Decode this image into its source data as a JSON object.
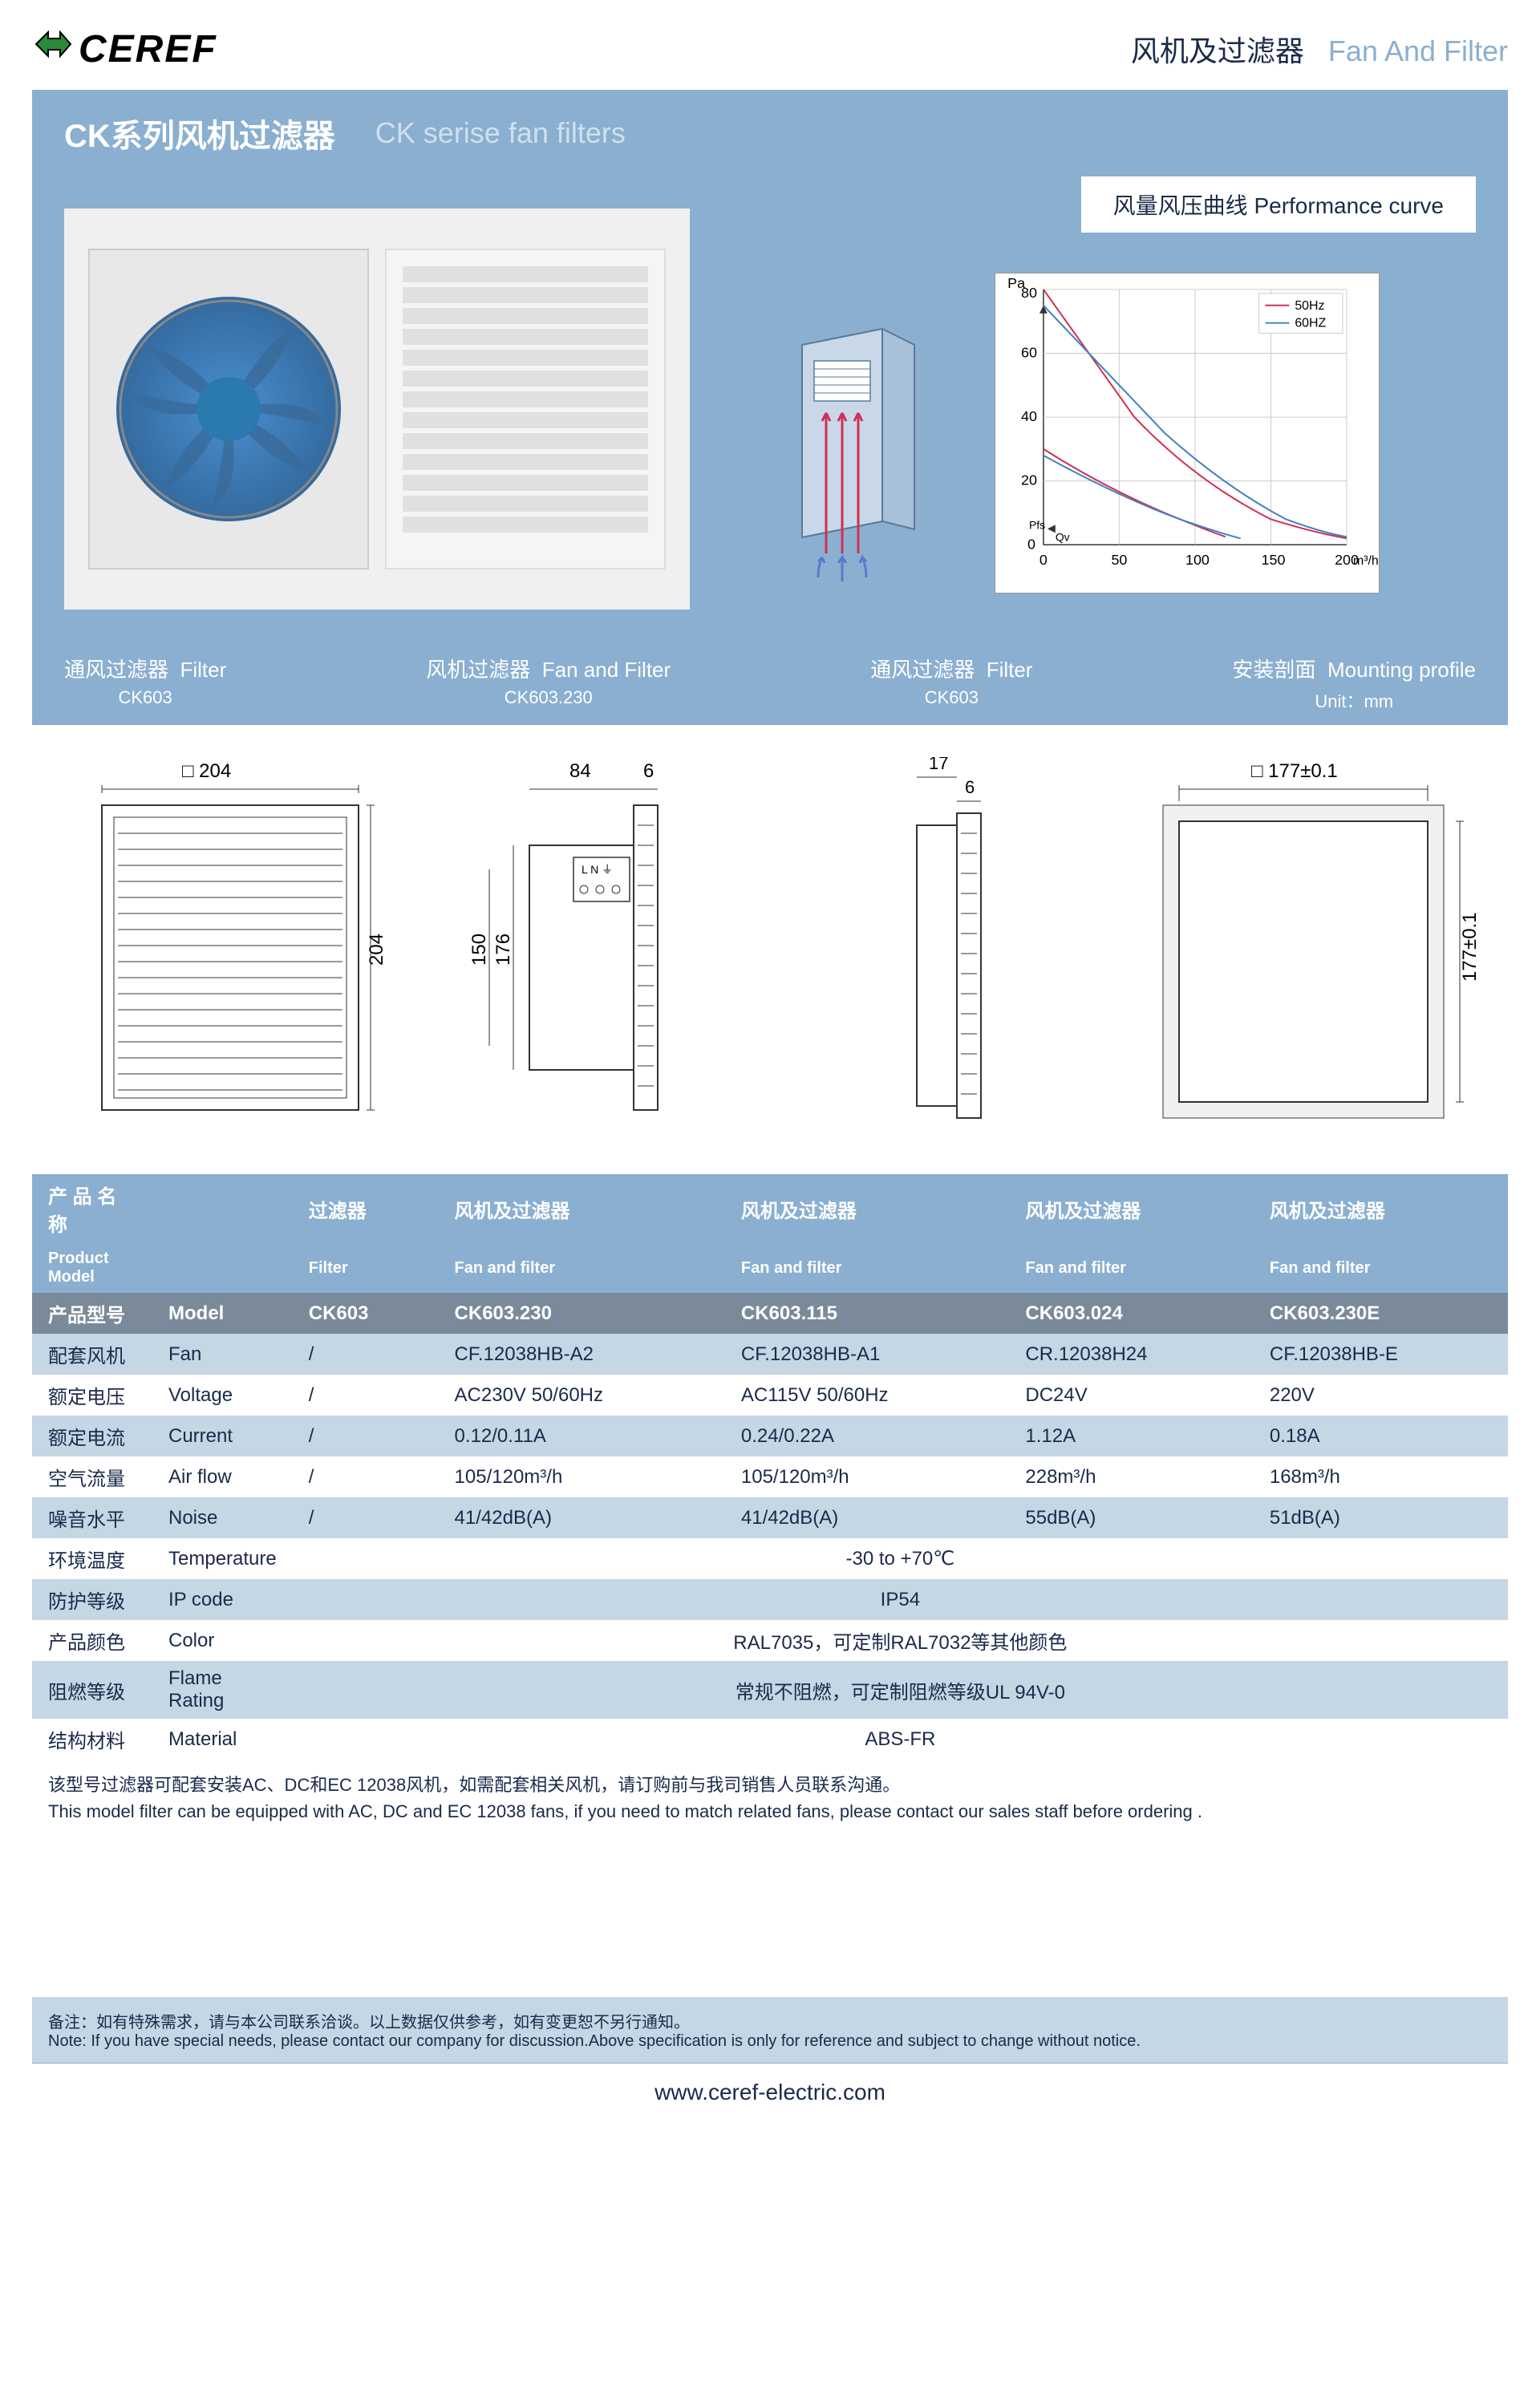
{
  "header": {
    "logo_text": "CEREF",
    "category_cn": "风机及过滤器",
    "category_en": "Fan And Filter"
  },
  "title": {
    "cn": "CK系列风机过滤器",
    "en": "CK serise fan filters"
  },
  "perf_curve": {
    "label_cn": "风量风压曲线",
    "label_en": "Performance curve",
    "y_axis_label": "Pa",
    "x_axis_label": "m³/h",
    "x_sub": "Qv",
    "y_sub": "Pfs",
    "y_ticks": [
      "0",
      "20",
      "40",
      "60",
      "80"
    ],
    "x_ticks": [
      "0",
      "50",
      "100",
      "150",
      "200"
    ],
    "legend": [
      {
        "label": "50Hz",
        "color": "#d03050"
      },
      {
        "label": "60HZ",
        "color": "#4080c0"
      }
    ],
    "series_50hz": {
      "color": "#d03050",
      "points": [
        [
          0,
          80
        ],
        [
          30,
          60
        ],
        [
          60,
          40
        ],
        [
          100,
          20
        ],
        [
          150,
          8
        ],
        [
          200,
          2
        ]
      ]
    },
    "series_60hz": {
      "color": "#4080c0",
      "points": [
        [
          0,
          75
        ],
        [
          40,
          55
        ],
        [
          80,
          35
        ],
        [
          120,
          18
        ],
        [
          160,
          8
        ],
        [
          200,
          3
        ]
      ]
    },
    "series_50hz_2": {
      "color": "#d03050",
      "points": [
        [
          0,
          30
        ],
        [
          40,
          18
        ],
        [
          80,
          10
        ],
        [
          120,
          5
        ]
      ]
    },
    "series_60hz_2": {
      "color": "#4080c0",
      "points": [
        [
          0,
          28
        ],
        [
          50,
          15
        ],
        [
          90,
          8
        ],
        [
          130,
          4
        ]
      ]
    }
  },
  "diagram_header": {
    "cols": [
      {
        "cn": "通风过滤器",
        "en": "Filter",
        "model": "CK603"
      },
      {
        "cn": "风机过滤器",
        "en": "Fan and Filter",
        "model": "CK603.230"
      },
      {
        "cn": "通风过滤器",
        "en": "Filter",
        "model": "CK603"
      },
      {
        "cn": "安装剖面",
        "en": "Mounting profile",
        "model": ""
      }
    ],
    "unit_label": "Unit：mm"
  },
  "dimensions": {
    "d1": {
      "w": "204",
      "h": "204",
      "sq_sym": "□"
    },
    "d2": {
      "w": "84",
      "gap": "6",
      "h1": "176",
      "h2": "150"
    },
    "d3": {
      "w1": "17",
      "w2": "6"
    },
    "d4": {
      "w": "177±0.1",
      "h": "177±0.1",
      "sq_sym": "□"
    }
  },
  "spec_table": {
    "header_rows": {
      "name_cn": "产 品 名 称",
      "name_en": "Product Model",
      "cols": [
        {
          "cn": "过滤器",
          "en": "Filter"
        },
        {
          "cn": "风机及过滤器",
          "en": "Fan and filter"
        },
        {
          "cn": "风机及过滤器",
          "en": "Fan and filter"
        },
        {
          "cn": "风机及过滤器",
          "en": "Fan and filter"
        },
        {
          "cn": "风机及过滤器",
          "en": "Fan and filter"
        }
      ]
    },
    "rows": [
      {
        "cn": "产品型号",
        "en": "Model",
        "vals": [
          "CK603",
          "CK603.230",
          "CK603.115",
          "CK603.024",
          "CK603.230E"
        ],
        "cls": "model-row"
      },
      {
        "cn": "配套风机",
        "en": "Fan",
        "vals": [
          "/",
          "CF.12038HB-A2",
          "CF.12038HB-A1",
          "CR.12038H24",
          "CF.12038HB-E"
        ],
        "cls": "striped"
      },
      {
        "cn": "额定电压",
        "en": "Voltage",
        "vals": [
          "/",
          "AC230V 50/60Hz",
          "AC115V 50/60Hz",
          "DC24V",
          "220V"
        ],
        "cls": ""
      },
      {
        "cn": "额定电流",
        "en": "Current",
        "vals": [
          "/",
          "0.12/0.11A",
          "0.24/0.22A",
          "1.12A",
          "0.18A"
        ],
        "cls": "striped"
      },
      {
        "cn": "空气流量",
        "en": "Air flow",
        "vals": [
          "/",
          "105/120m³/h",
          "105/120m³/h",
          "228m³/h",
          "168m³/h"
        ],
        "cls": ""
      },
      {
        "cn": "噪音水平",
        "en": "Noise",
        "vals": [
          "/",
          "41/42dB(A)",
          "41/42dB(A)",
          "55dB(A)",
          "51dB(A)"
        ],
        "cls": "striped"
      },
      {
        "cn": "环境温度",
        "en": "Temperature",
        "merged": "-30 to +70℃",
        "cls": ""
      },
      {
        "cn": "防护等级",
        "en": "IP code",
        "merged": "IP54",
        "cls": "striped"
      },
      {
        "cn": "产品颜色",
        "en": "Color",
        "merged": "RAL7035，可定制RAL7032等其他颜色",
        "cls": ""
      },
      {
        "cn": "阻燃等级",
        "en": "Flame Rating",
        "merged": "常规不阻燃，可定制阻燃等级UL 94V-0",
        "cls": "striped"
      },
      {
        "cn": "结构材料",
        "en": "Material",
        "merged": "ABS-FR",
        "cls": ""
      }
    ]
  },
  "notes": {
    "main_cn": "该型号过滤器可配套安装AC、DC和EC 12038风机，如需配套相关风机，请订购前与我司销售人员联系沟通。",
    "main_en": "This model filter can be equipped with AC, DC and EC 12038 fans, if you need to match related fans, please contact our sales staff before ordering .",
    "bottom_cn": "备注：如有特殊需求，请与本公司联系洽谈。以上数据仅供参考，如有变更恕不另行通知。",
    "bottom_en": "Note: If you have special needs, please contact our company for discussion.Above specification is only for reference and subject to change without notice."
  },
  "footer": {
    "url": "www.ceref-electric.com"
  },
  "colors": {
    "primary_blue": "#8aafd0",
    "dark_text": "#1a2a4a",
    "light_blue": "#c5d6e5",
    "gray_row": "#7a8a9a",
    "green_logo": "#2a8a3a"
  }
}
